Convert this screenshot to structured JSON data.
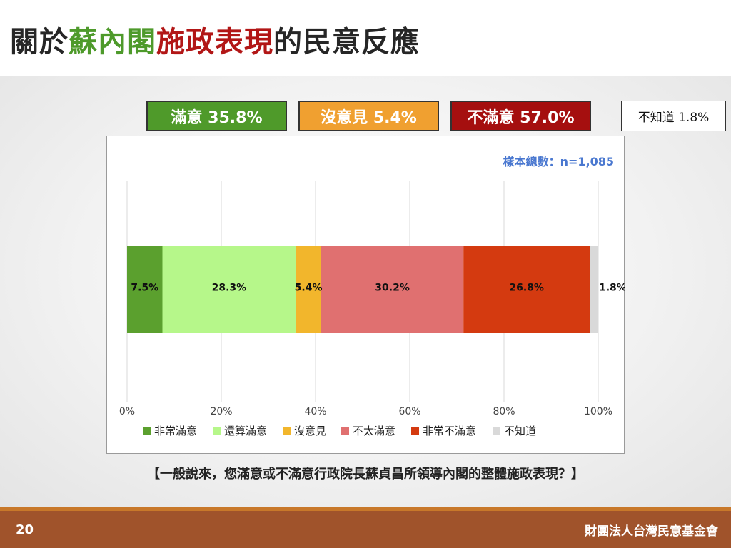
{
  "title": {
    "part1": "關於",
    "part2": "蘇內閣",
    "part3": "施政表現",
    "part4": "的民意反應"
  },
  "summary": {
    "satisfied": "滿意 35.8%",
    "neutral": "沒意見 5.4%",
    "dissatisfied": "不滿意 57.0%",
    "dont_know": "不知道 1.8%"
  },
  "sample_size": "樣本總數：n=1,085",
  "question": "【一般說來，您滿意或不滿意行政院長蘇貞昌所領導內閣的整體施政表現？】",
  "footer": {
    "page_number": "20",
    "organization": "財團法人台灣民意基金會"
  },
  "chart_data": {
    "type": "bar",
    "orientation": "horizontal-stacked",
    "xlim": [
      0,
      100
    ],
    "ticks": [
      "0%",
      "20%",
      "40%",
      "60%",
      "80%",
      "100%"
    ],
    "tick_values": [
      0,
      20,
      40,
      60,
      80,
      100
    ],
    "grid": true,
    "legend_position": "bottom",
    "series": [
      {
        "name": "非常滿意",
        "value": 7.5,
        "label": "7.5%",
        "color": "#5ba02e"
      },
      {
        "name": "還算滿意",
        "value": 28.3,
        "label": "28.3%",
        "color": "#b6f78a"
      },
      {
        "name": "沒意見",
        "value": 5.4,
        "label": "5.4%",
        "color": "#f2b62c"
      },
      {
        "name": "不太滿意",
        "value": 30.2,
        "label": "30.2%",
        "color": "#e07070"
      },
      {
        "name": "非常不滿意",
        "value": 26.8,
        "label": "26.8%",
        "color": "#d43a10"
      },
      {
        "name": "不知道",
        "value": 1.8,
        "label": "1.8%",
        "color": "#d9d9d9"
      }
    ]
  }
}
